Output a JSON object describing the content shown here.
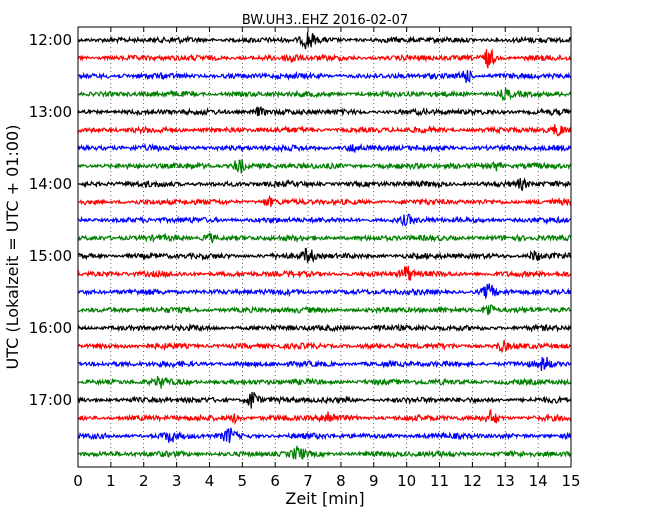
{
  "chart_data": {
    "type": "line",
    "title": "BW.UH3..EHZ 2016-02-07",
    "xlabel": "Zeit  [min]",
    "ylabel": "UTC (Lokalzeit = UTC + 01:00)",
    "xlim": [
      0,
      15
    ],
    "x_ticks": [
      "0",
      "1",
      "2",
      "3",
      "4",
      "5",
      "6",
      "7",
      "8",
      "9",
      "10",
      "11",
      "12",
      "13",
      "14",
      "15"
    ],
    "y_ticks": [
      "12:00",
      "13:00",
      "14:00",
      "15:00",
      "16:00",
      "17:00"
    ],
    "trace_interval_minutes": 15,
    "first_trace_start": "12:00",
    "grid": "x-dotted",
    "colors": [
      "#000000",
      "#ff0000",
      "#0000ff",
      "#008000"
    ],
    "series": [
      {
        "start": "12:00",
        "color": "#000000",
        "events": [
          {
            "x": 7.0,
            "amp": 1.8
          }
        ]
      },
      {
        "start": "12:15",
        "color": "#ff0000",
        "events": [
          {
            "x": 12.5,
            "amp": 2.0
          },
          {
            "x": 6.5,
            "amp": 1.0
          }
        ]
      },
      {
        "start": "12:30",
        "color": "#0000ff",
        "events": [
          {
            "x": 11.8,
            "amp": 1.6
          }
        ]
      },
      {
        "start": "12:45",
        "color": "#008000",
        "events": [
          {
            "x": 13.0,
            "amp": 1.0
          }
        ]
      },
      {
        "start": "13:00",
        "color": "#000000",
        "events": [
          {
            "x": 5.5,
            "amp": 0.8
          }
        ]
      },
      {
        "start": "13:15",
        "color": "#ff0000",
        "events": [
          {
            "x": 14.6,
            "amp": 1.0
          }
        ]
      },
      {
        "start": "13:30",
        "color": "#0000ff",
        "events": [
          {
            "x": 8.4,
            "amp": 0.8
          }
        ]
      },
      {
        "start": "13:45",
        "color": "#008000",
        "events": [
          {
            "x": 4.9,
            "amp": 1.6
          },
          {
            "x": 12.7,
            "amp": 1.0
          }
        ]
      },
      {
        "start": "14:00",
        "color": "#000000",
        "events": [
          {
            "x": 13.5,
            "amp": 0.9
          }
        ]
      },
      {
        "start": "14:15",
        "color": "#ff0000",
        "events": [
          {
            "x": 5.8,
            "amp": 0.8
          }
        ]
      },
      {
        "start": "14:30",
        "color": "#0000ff",
        "events": [
          {
            "x": 10.0,
            "amp": 0.8
          }
        ]
      },
      {
        "start": "14:45",
        "color": "#008000",
        "events": [
          {
            "x": 4.0,
            "amp": 0.9
          }
        ]
      },
      {
        "start": "15:00",
        "color": "#000000",
        "events": [
          {
            "x": 7.0,
            "amp": 1.5
          },
          {
            "x": 13.9,
            "amp": 1.0
          }
        ]
      },
      {
        "start": "15:15",
        "color": "#ff0000",
        "events": [
          {
            "x": 10.0,
            "amp": 1.7
          }
        ]
      },
      {
        "start": "15:30",
        "color": "#0000ff",
        "events": [
          {
            "x": 12.5,
            "amp": 1.5
          }
        ]
      },
      {
        "start": "15:45",
        "color": "#008000",
        "events": [
          {
            "x": 12.5,
            "amp": 1.5
          }
        ]
      },
      {
        "start": "16:00",
        "color": "#000000",
        "events": [
          {
            "x": 9.2,
            "amp": 0.8
          }
        ]
      },
      {
        "start": "16:15",
        "color": "#ff0000",
        "events": [
          {
            "x": 12.9,
            "amp": 1.0
          }
        ]
      },
      {
        "start": "16:30",
        "color": "#0000ff",
        "events": [
          {
            "x": 14.2,
            "amp": 1.4
          }
        ]
      },
      {
        "start": "16:45",
        "color": "#008000",
        "events": [
          {
            "x": 2.5,
            "amp": 0.9
          }
        ]
      },
      {
        "start": "17:00",
        "color": "#000000",
        "events": [
          {
            "x": 5.3,
            "amp": 2.0
          }
        ]
      },
      {
        "start": "17:15",
        "color": "#ff0000",
        "events": [
          {
            "x": 7.6,
            "amp": 1.5
          },
          {
            "x": 12.6,
            "amp": 1.5
          },
          {
            "x": 4.8,
            "amp": 0.9
          }
        ]
      },
      {
        "start": "17:30",
        "color": "#0000ff",
        "events": [
          {
            "x": 4.6,
            "amp": 1.5
          },
          {
            "x": 2.8,
            "amp": 1.0
          }
        ]
      },
      {
        "start": "17:45",
        "color": "#008000",
        "events": [
          {
            "x": 6.7,
            "amp": 1.3
          }
        ]
      }
    ]
  }
}
